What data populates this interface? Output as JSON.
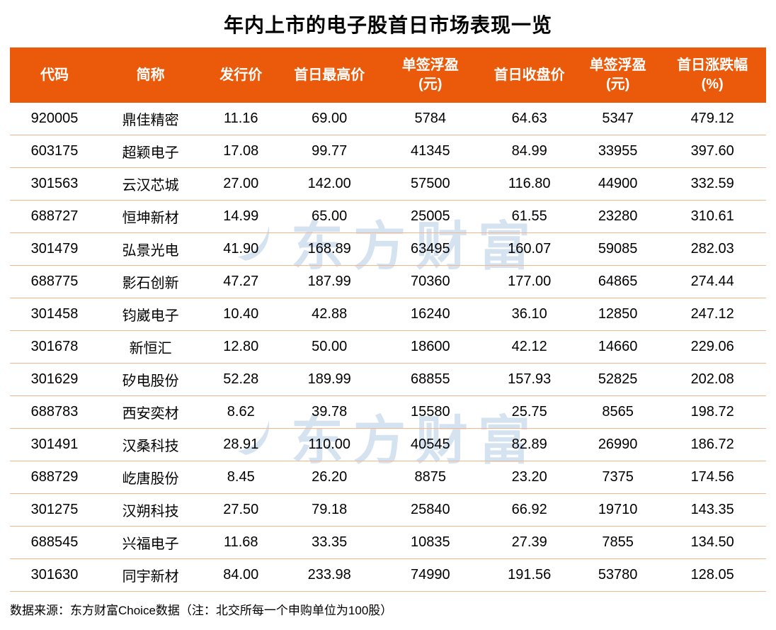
{
  "title": "年内上市的电子股首日市场表现一览",
  "watermark": {
    "text": "东方财富",
    "logo": "eastmoney-swoosh"
  },
  "chart_data": {
    "type": "table",
    "title": "年内上市的电子股首日市场表现一览",
    "columns": [
      {
        "label": "代码",
        "sub": ""
      },
      {
        "label": "简称",
        "sub": ""
      },
      {
        "label": "发行价",
        "sub": ""
      },
      {
        "label": "首日最高价",
        "sub": ""
      },
      {
        "label": "单签浮盈",
        "sub": "(元)"
      },
      {
        "label": "首日收盘价",
        "sub": ""
      },
      {
        "label": "单签浮盈",
        "sub": "(元)"
      },
      {
        "label": "首日涨跌幅",
        "sub": "(%)"
      }
    ],
    "rows": [
      [
        "920005",
        "鼎佳精密",
        "11.16",
        "69.00",
        "5784",
        "64.63",
        "5347",
        "479.12"
      ],
      [
        "603175",
        "超颖电子",
        "17.08",
        "99.77",
        "41345",
        "84.99",
        "33955",
        "397.60"
      ],
      [
        "301563",
        "云汉芯城",
        "27.00",
        "142.00",
        "57500",
        "116.80",
        "44900",
        "332.59"
      ],
      [
        "688727",
        "恒坤新材",
        "14.99",
        "65.00",
        "25005",
        "61.55",
        "23280",
        "310.61"
      ],
      [
        "301479",
        "弘景光电",
        "41.90",
        "168.89",
        "63495",
        "160.07",
        "59085",
        "282.03"
      ],
      [
        "688775",
        "影石创新",
        "47.27",
        "187.99",
        "70360",
        "177.00",
        "64865",
        "274.44"
      ],
      [
        "301458",
        "钧崴电子",
        "10.40",
        "42.88",
        "16240",
        "36.10",
        "12850",
        "247.12"
      ],
      [
        "301678",
        "新恒汇",
        "12.80",
        "50.00",
        "18600",
        "42.12",
        "14660",
        "229.06"
      ],
      [
        "301629",
        "矽电股份",
        "52.28",
        "189.99",
        "68855",
        "157.93",
        "52825",
        "202.08"
      ],
      [
        "688783",
        "西安奕材",
        "8.62",
        "39.78",
        "15580",
        "25.75",
        "8565",
        "198.72"
      ],
      [
        "301491",
        "汉桑科技",
        "28.91",
        "110.00",
        "40545",
        "82.89",
        "26990",
        "186.72"
      ],
      [
        "688729",
        "屹唐股份",
        "8.45",
        "26.20",
        "8875",
        "23.20",
        "7375",
        "174.56"
      ],
      [
        "301275",
        "汉朔科技",
        "27.50",
        "79.18",
        "25840",
        "66.92",
        "19710",
        "143.35"
      ],
      [
        "688545",
        "兴福电子",
        "11.68",
        "33.35",
        "10835",
        "27.39",
        "7855",
        "134.50"
      ],
      [
        "301630",
        "同宇新材",
        "84.00",
        "233.98",
        "74990",
        "191.56",
        "53780",
        "128.05"
      ]
    ],
    "column_widths_percent": [
      11.8,
      13.6,
      10.3,
      13.1,
      13.6,
      12.6,
      10.8,
      14.2
    ],
    "legend_position": "none",
    "grid": "horizontal-dividers"
  },
  "footer": {
    "source": "数据来源：东方财富Choice数据（注：北交所每一个申购单位为100股）"
  },
  "colors": {
    "header_bg": "#ea5a0a",
    "header_text": "#ffffff",
    "divider": "#f4b78d",
    "title_text": "#000000",
    "body_text": "#000000",
    "watermark": "#d5e3f1",
    "background": "#ffffff"
  }
}
